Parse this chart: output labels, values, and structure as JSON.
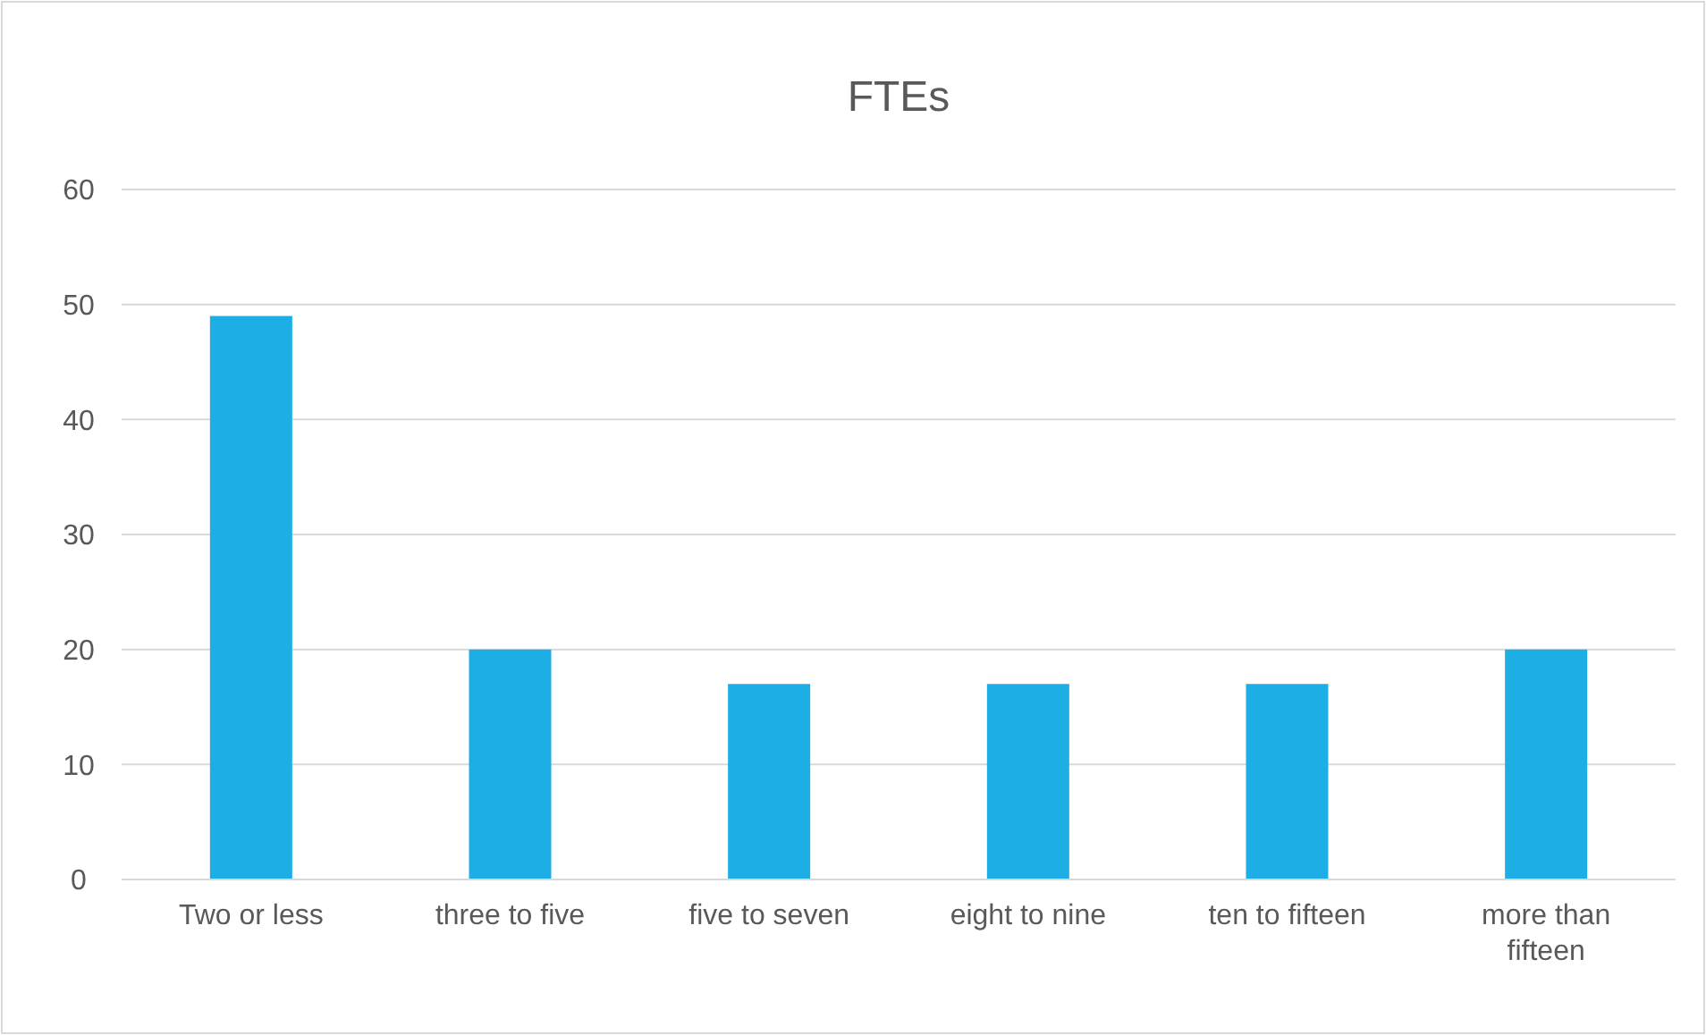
{
  "chart_data": {
    "type": "bar",
    "title": "FTEs",
    "categories": [
      "Two or less",
      "three to five",
      "five to seven",
      "eight to nine",
      "ten to fifteen",
      "more than fifteen"
    ],
    "values": [
      49,
      20,
      17,
      17,
      17,
      20
    ],
    "color": "#1caee4",
    "ylim": [
      0,
      60
    ],
    "yticks": [
      0,
      10,
      20,
      30,
      40,
      50,
      60
    ],
    "grid": "y"
  }
}
